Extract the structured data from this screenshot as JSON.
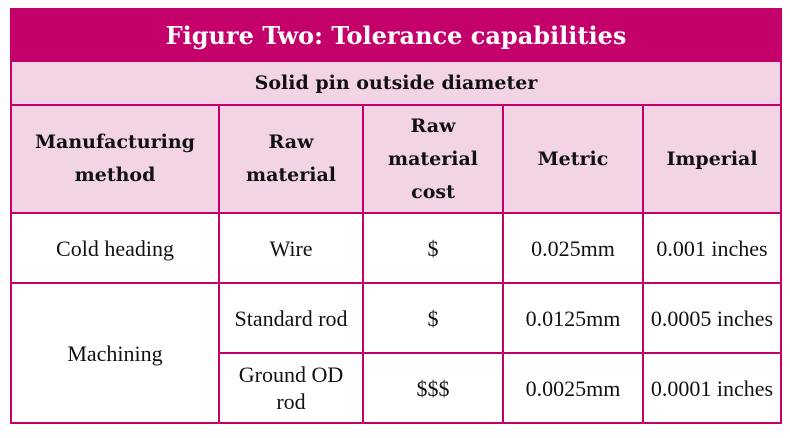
{
  "title": "Figure Two: Tolerance capabilities",
  "subtitle": "Solid pin outside diameter",
  "table": {
    "columns": [
      "Manufacturing method",
      "Raw material",
      "Raw material cost",
      "Metric",
      "Imperial"
    ],
    "groups": [
      {
        "method": "Cold heading",
        "rows": [
          [
            "Wire",
            "$",
            "0.025mm",
            "0.001 inches"
          ]
        ]
      },
      {
        "method": "Machining",
        "rows": [
          [
            "Standard rod",
            "$",
            "0.0125mm",
            "0.0005 inches"
          ],
          [
            "Ground OD rod",
            "$$$",
            "0.0025mm",
            "0.0001 inches"
          ]
        ]
      }
    ]
  }
}
